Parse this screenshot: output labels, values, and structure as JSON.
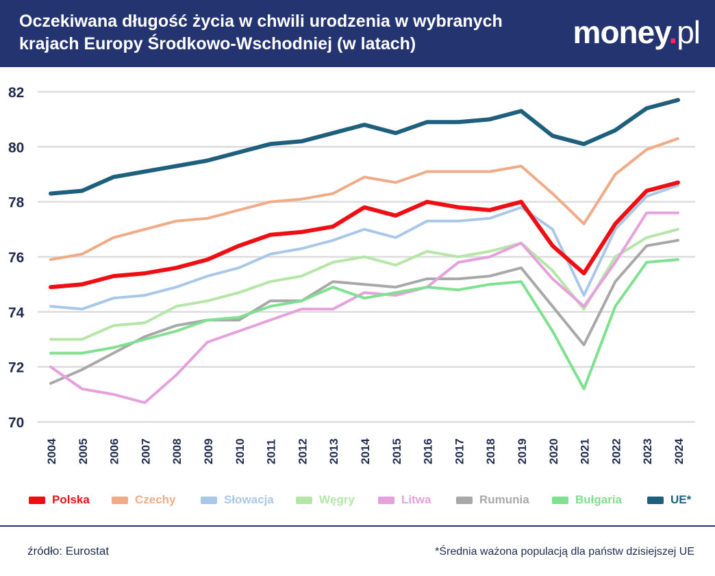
{
  "header": {
    "title_line1": "Oczekiwana długość życia w chwili urodzenia w wybranych",
    "title_line2": "krajach Europy Środkowo-Wschodniej (w latach)",
    "logo_main": "money",
    "logo_dot": ".",
    "logo_suffix": "pl"
  },
  "footer": {
    "source": "źródło: Eurostat",
    "note": "*Średnia ważona populacją dla państw dzisiejszej UE"
  },
  "chart_data": {
    "type": "line",
    "title": "Oczekiwana długość życia w chwili urodzenia w wybranych krajach Europy Środkowo-Wschodniej (w latach)",
    "xlabel": "",
    "ylabel": "",
    "ylim": [
      70,
      82
    ],
    "yticks": [
      70,
      72,
      74,
      76,
      78,
      80,
      82
    ],
    "grid": true,
    "legend_position": "bottom",
    "x": [
      "2004",
      "2005",
      "2006",
      "2007",
      "2008",
      "2009",
      "2010",
      "2011",
      "2012",
      "2013",
      "2014",
      "2015",
      "2016",
      "2017",
      "2018",
      "2019",
      "2020",
      "2021",
      "2022",
      "2023",
      "2024"
    ],
    "series": [
      {
        "name": "UE*",
        "color": "#1f5f7e",
        "width": 6,
        "values": [
          78.3,
          78.4,
          78.9,
          79.1,
          79.3,
          79.5,
          79.8,
          80.1,
          80.2,
          80.5,
          80.8,
          80.5,
          80.9,
          80.9,
          81.0,
          81.3,
          80.4,
          80.1,
          80.6,
          81.4,
          81.7
        ]
      },
      {
        "name": "Czechy",
        "color": "#f0ab86",
        "width": 4,
        "values": [
          75.9,
          76.1,
          76.7,
          77.0,
          77.3,
          77.4,
          77.7,
          78.0,
          78.1,
          78.3,
          78.9,
          78.7,
          79.1,
          79.1,
          79.1,
          79.3,
          78.3,
          77.2,
          79.0,
          79.9,
          80.3
        ]
      },
      {
        "name": "Słowacja",
        "color": "#a9c8e8",
        "width": 4,
        "values": [
          74.2,
          74.1,
          74.5,
          74.6,
          74.9,
          75.3,
          75.6,
          76.1,
          76.3,
          76.6,
          77.0,
          76.7,
          77.3,
          77.3,
          77.4,
          77.8,
          77.0,
          74.6,
          77.0,
          78.2,
          78.6
        ]
      },
      {
        "name": "Węgry",
        "color": "#b5e6a7",
        "width": 4,
        "values": [
          73.0,
          73.0,
          73.5,
          73.6,
          74.2,
          74.4,
          74.7,
          75.1,
          75.3,
          75.8,
          76.0,
          75.7,
          76.2,
          76.0,
          76.2,
          76.5,
          75.5,
          74.1,
          76.0,
          76.7,
          77.0
        ]
      },
      {
        "name": "Rumunia",
        "color": "#a8a8a8",
        "width": 4,
        "values": [
          71.4,
          71.9,
          72.5,
          73.1,
          73.5,
          73.7,
          73.7,
          74.4,
          74.4,
          75.1,
          75.0,
          74.9,
          75.2,
          75.2,
          75.3,
          75.6,
          74.2,
          72.8,
          75.1,
          76.4,
          76.6
        ]
      },
      {
        "name": "Litwa",
        "color": "#e6a1dc",
        "width": 4,
        "values": [
          72.0,
          71.2,
          71.0,
          70.7,
          71.7,
          72.9,
          73.3,
          73.7,
          74.1,
          74.1,
          74.7,
          74.6,
          74.9,
          75.8,
          76.0,
          76.5,
          75.2,
          74.2,
          75.8,
          77.6,
          77.6
        ]
      },
      {
        "name": "Bułgaria",
        "color": "#7fe08f",
        "width": 4,
        "values": [
          72.5,
          72.5,
          72.7,
          73.0,
          73.3,
          73.7,
          73.8,
          74.2,
          74.4,
          74.9,
          74.5,
          74.7,
          74.9,
          74.8,
          75.0,
          75.1,
          73.3,
          71.2,
          74.2,
          75.8,
          75.9
        ]
      },
      {
        "name": "Polska",
        "color": "#ee0f14",
        "width": 6,
        "values": [
          74.9,
          75.0,
          75.3,
          75.4,
          75.6,
          75.9,
          76.4,
          76.8,
          76.9,
          77.1,
          77.8,
          77.5,
          78.0,
          77.8,
          77.7,
          78.0,
          76.4,
          75.4,
          77.2,
          78.4,
          78.7
        ]
      }
    ],
    "legend_order": [
      "Polska",
      "Czechy",
      "Słowacja",
      "Węgry",
      "Litwa",
      "Rumunia",
      "Bułgaria",
      "UE*"
    ]
  }
}
